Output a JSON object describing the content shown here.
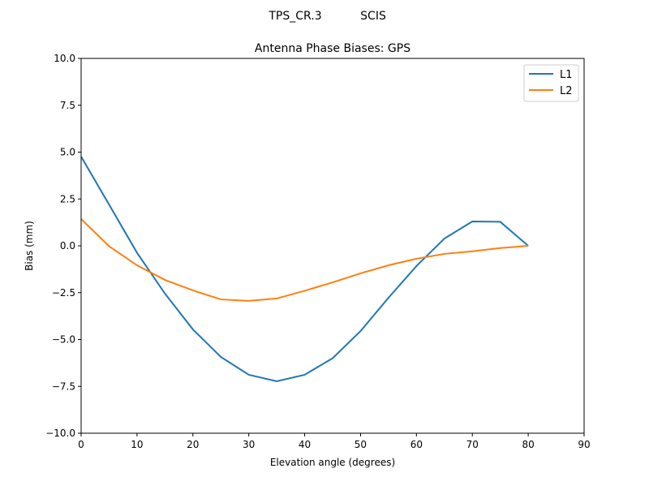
{
  "suptitle_left": "TPS_CR.3",
  "suptitle_right": "SCIS",
  "chart_data": {
    "type": "line",
    "title": "Antenna Phase Biases: GPS",
    "xlabel": "Elevation angle (degrees)",
    "ylabel": "Bias (mm)",
    "xlim": [
      0,
      90
    ],
    "ylim": [
      -10,
      10
    ],
    "xticks": [
      0,
      10,
      20,
      30,
      40,
      50,
      60,
      70,
      80,
      90
    ],
    "yticks": [
      -10.0,
      -7.5,
      -5.0,
      -2.5,
      0.0,
      2.5,
      5.0,
      7.5,
      10.0
    ],
    "xtick_labels": [
      "0",
      "10",
      "20",
      "30",
      "40",
      "50",
      "60",
      "70",
      "80",
      "90"
    ],
    "ytick_labels": [
      "−10.0",
      "−7.5",
      "−5.0",
      "−2.5",
      "0.0",
      "2.5",
      "5.0",
      "7.5",
      "10.0"
    ],
    "grid": false,
    "legend_position": "top-right",
    "x": [
      0,
      5,
      10,
      15,
      20,
      25,
      30,
      35,
      40,
      45,
      50,
      55,
      60,
      65,
      70,
      75,
      80
    ],
    "series": [
      {
        "name": "L1",
        "color": "#1f77b4",
        "values": [
          4.76,
          2.2,
          -0.37,
          -2.55,
          -4.46,
          -5.93,
          -6.88,
          -7.23,
          -6.88,
          -6.0,
          -4.55,
          -2.77,
          -1.08,
          0.39,
          1.3,
          1.28,
          0.0
        ]
      },
      {
        "name": "L2",
        "color": "#ff7f0e",
        "values": [
          1.43,
          -0.02,
          -1.04,
          -1.82,
          -2.38,
          -2.86,
          -2.94,
          -2.81,
          -2.4,
          -1.95,
          -1.47,
          -1.04,
          -0.69,
          -0.43,
          -0.29,
          -0.12,
          0.0
        ]
      }
    ]
  }
}
